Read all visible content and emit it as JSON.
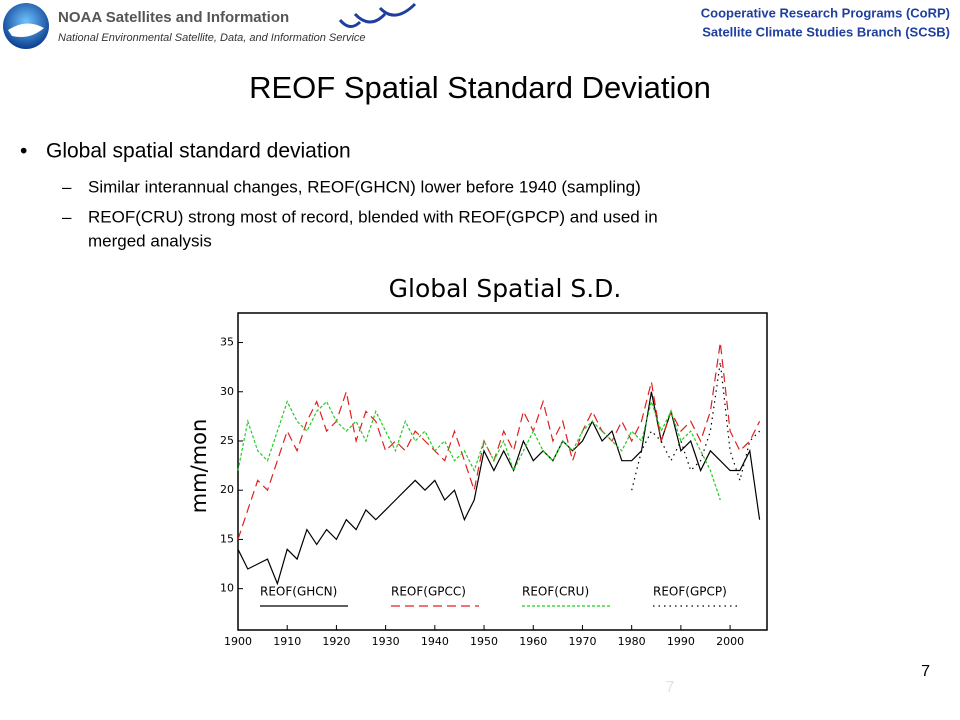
{
  "header": {
    "org": "NOAA Satellites and Information",
    "subtitle": "National Environmental Satellite, Data, and Information Service",
    "program": "Cooperative Research Programs (CoRP)",
    "branch": "Satellite Climate Studies Branch (SCSB)"
  },
  "slide": {
    "title": "REOF Spatial Standard Deviation",
    "bullet": "Global spatial standard deviation",
    "subbullets": [
      "Similar interannual changes, REOF(GHCN) lower before 1940 (sampling)",
      "REOF(CRU) strong most of record, blended with REOF(GPCP) and used in",
      "merged analysis"
    ],
    "page_number": "7",
    "watermark": "7"
  },
  "chart_data": {
    "type": "line",
    "title": "Global Spatial S.D.",
    "y_label": "mm/mon",
    "x": [
      1900,
      1902,
      1904,
      1906,
      1908,
      1910,
      1912,
      1914,
      1916,
      1918,
      1920,
      1922,
      1924,
      1926,
      1928,
      1930,
      1932,
      1934,
      1936,
      1938,
      1940,
      1942,
      1944,
      1946,
      1948,
      1950,
      1952,
      1954,
      1956,
      1958,
      1960,
      1962,
      1964,
      1966,
      1968,
      1970,
      1972,
      1974,
      1976,
      1978,
      1980,
      1982,
      1984,
      1986,
      1988,
      1990,
      1992,
      1994,
      1996,
      1998,
      2000,
      2002,
      2004,
      2006
    ],
    "xlim": [
      1900,
      2007.5
    ],
    "xticks": [
      1900,
      1910,
      1920,
      1930,
      1940,
      1950,
      1960,
      1970,
      1980,
      1990,
      2000
    ],
    "ylim": [
      5.8,
      38
    ],
    "yticks": [
      10,
      15,
      20,
      25,
      30,
      35
    ],
    "series": [
      {
        "name": "REOF(GHCN)",
        "color": "#000000",
        "dash": "none",
        "values": [
          14,
          12,
          12.5,
          13,
          10.5,
          14,
          13,
          16,
          14.5,
          16,
          15,
          17,
          16,
          18,
          17,
          18,
          19,
          20,
          21,
          20,
          21,
          19,
          20,
          17,
          19,
          24,
          22,
          24,
          22,
          25,
          23,
          24,
          23,
          25,
          24,
          25,
          27,
          25,
          26,
          23,
          23,
          24,
          30,
          25,
          28,
          24,
          25,
          22,
          24,
          23,
          22,
          22,
          24,
          17
        ]
      },
      {
        "name": "REOF(GPCC)",
        "color": "#e02020",
        "dash": "9 5",
        "values": [
          15,
          18,
          21,
          20,
          23,
          26,
          24,
          27,
          29,
          26,
          27,
          30,
          25,
          28,
          27,
          24,
          25,
          24,
          26,
          25,
          24,
          23,
          26,
          23,
          20,
          25,
          23,
          26,
          24,
          28,
          26,
          29,
          25,
          27,
          23,
          26,
          28,
          26,
          25,
          27,
          25,
          27,
          31,
          25,
          28,
          26,
          27,
          25,
          28,
          35,
          26,
          24,
          25,
          27
        ]
      },
      {
        "name": "REOF(CRU)",
        "color": "#22cc22",
        "dash": "3 2",
        "values": [
          22,
          27,
          24,
          23,
          26,
          29,
          27,
          26,
          28,
          29,
          27,
          26,
          27,
          25,
          28,
          26,
          24,
          27,
          25,
          26,
          24,
          25,
          23,
          24,
          22,
          25,
          23,
          25,
          22,
          24,
          26,
          24,
          23,
          25,
          24,
          26,
          27,
          26,
          25,
          24,
          26,
          25,
          29,
          26,
          28,
          25,
          26,
          24,
          22,
          19,
          null,
          null,
          null,
          null
        ]
      },
      {
        "name": "REOF(GPCP)",
        "color": "#000000",
        "dash": "1.5 4",
        "values": [
          null,
          null,
          null,
          null,
          null,
          null,
          null,
          null,
          null,
          null,
          null,
          null,
          null,
          null,
          null,
          null,
          null,
          null,
          null,
          null,
          null,
          null,
          null,
          null,
          null,
          null,
          null,
          null,
          null,
          null,
          null,
          null,
          null,
          null,
          null,
          null,
          null,
          null,
          null,
          null,
          20,
          24,
          26,
          25,
          23,
          25,
          22,
          23,
          26,
          33,
          24,
          21,
          25,
          26
        ]
      }
    ]
  }
}
